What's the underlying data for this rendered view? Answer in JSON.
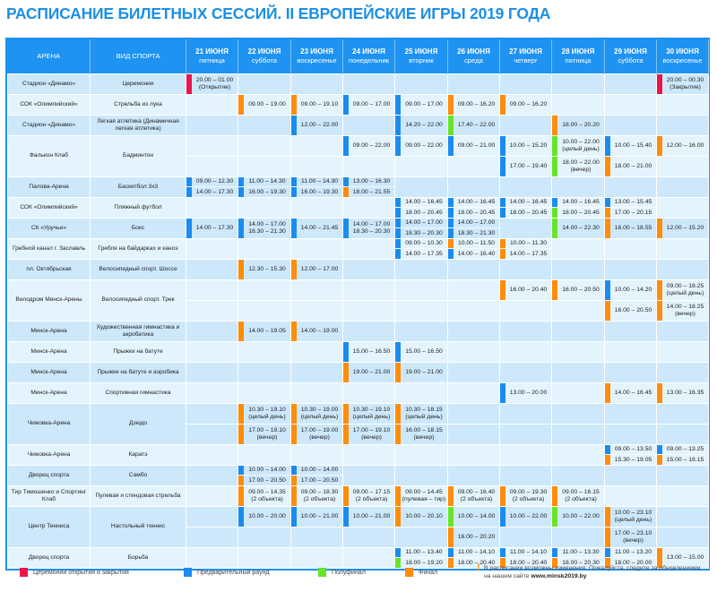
{
  "title": "РАСПИСАНИЕ БИЛЕТНЫХ СЕССИЙ. II ЕВРОПЕЙСКИЕ ИГРЫ 2019 ГОДА",
  "colors": {
    "r": "#e8174a",
    "b": "#1a8cf0",
    "g": "#66e52a",
    "o": "#ff8c0a",
    "header": "#1e93f2",
    "title": "#1c8fe6"
  },
  "header": {
    "arena": "АРЕНА",
    "sport": "ВИД СПОРТА",
    "days": [
      {
        "date": "21 ИЮНЯ",
        "weekday": "пятница"
      },
      {
        "date": "22 ИЮНЯ",
        "weekday": "суббота"
      },
      {
        "date": "23 ИЮНЯ",
        "weekday": "воскресенье"
      },
      {
        "date": "24 ИЮНЯ",
        "weekday": "понедельник"
      },
      {
        "date": "25 ИЮНЯ",
        "weekday": "вторник"
      },
      {
        "date": "26 ИЮНЯ",
        "weekday": "среда"
      },
      {
        "date": "27 ИЮНЯ",
        "weekday": "четверг"
      },
      {
        "date": "28 ИЮНЯ",
        "weekday": "пятница"
      },
      {
        "date": "29 ИЮНЯ",
        "weekday": "суббота"
      },
      {
        "date": "30 ИЮНЯ",
        "weekday": "воскресенье"
      }
    ]
  },
  "rows": [
    {
      "arena": "Стадион «Динамо»",
      "sport": "Церемонии",
      "sub": [
        {
          "0": [
            {
              "c": "r",
              "t": "20.00 – 01.00",
              "n": "(Открытие)"
            }
          ],
          "9": [
            {
              "c": "r",
              "t": "20.00 – 00.30",
              "n": "(Закрытие)"
            }
          ]
        }
      ]
    },
    {
      "arena": "СОК «Олимпийский»",
      "sport": "Стрельба из лука",
      "sub": [
        {
          "1": [
            {
              "c": "o",
              "t": "09.00 – 19.00"
            }
          ],
          "2": [
            {
              "c": "o",
              "t": "09.00 – 19.10"
            }
          ],
          "3": [
            {
              "c": "b",
              "t": "09.00 – 17.00"
            }
          ],
          "4": [
            {
              "c": "b",
              "t": "09.00 – 17.00"
            }
          ],
          "5": [
            {
              "c": "o",
              "t": "09.00 – 16.20"
            }
          ],
          "6": [
            {
              "c": "o",
              "t": "09.00 – 16.20"
            }
          ]
        }
      ]
    },
    {
      "arena": "Стадион «Динамо»",
      "sport": "Легкая атлетика (Динамичная легкая атлетика)",
      "sub": [
        {
          "2": [
            {
              "c": "b",
              "t": "12.00 – 22.00"
            }
          ],
          "4": [
            {
              "c": "b",
              "t": "14.20 – 22.00"
            }
          ],
          "5": [
            {
              "c": "g",
              "t": "17.40 – 22.00"
            }
          ],
          "7": [
            {
              "c": "o",
              "t": "18.00 – 20.20"
            }
          ]
        }
      ]
    },
    {
      "arena": "Фалькон Клаб",
      "sport": "Бадминтон",
      "sub": [
        {
          "3": [
            {
              "c": "b",
              "t": "09.00 – 22.00"
            }
          ],
          "4": [
            {
              "c": "b",
              "t": "09.00 – 22.00"
            }
          ],
          "5": [
            {
              "c": "b",
              "t": "09.00 – 21.00"
            }
          ],
          "6": [
            {
              "c": "b",
              "t": "10.00 – 15.20"
            }
          ],
          "7": [
            {
              "c": "g",
              "t": "10.00 – 22.00",
              "n": "(целый день)"
            }
          ],
          "8": [
            {
              "c": "b",
              "t": "10.00 – 15.40"
            }
          ],
          "9": [
            {
              "c": "o",
              "t": "12.00 – 16.00"
            }
          ]
        },
        {
          "6": [
            {
              "c": "b",
              "t": "17.00 – 19.40"
            }
          ],
          "7": [
            {
              "c": "g",
              "t": "18.00 – 22.00",
              "n": "(вечер)"
            }
          ],
          "8": [
            {
              "c": "o",
              "t": "18.00 – 21.00"
            }
          ]
        }
      ]
    },
    {
      "arena": "Палова-Арена",
      "sport": "Баскетбол 3х3",
      "sub": [
        {
          "0": [
            {
              "c": "b",
              "t": "09.00 – 12.30"
            },
            {
              "c": "b",
              "t": "14.00 – 17.30"
            }
          ],
          "1": [
            {
              "c": "b",
              "t": "11.00 – 14.30"
            },
            {
              "c": "b",
              "t": "16.00 – 19.30"
            }
          ],
          "2": [
            {
              "c": "b",
              "t": "11.00 – 14.30"
            },
            {
              "c": "b",
              "t": "16.00 – 19.30"
            }
          ],
          "3": [
            {
              "c": "b",
              "t": "13.00 – 16.30"
            },
            {
              "c": "o",
              "t": "18.00 – 21.55"
            }
          ]
        }
      ]
    },
    {
      "arena": "СОК «Олимпийский»",
      "sport": "Пляжный футбол",
      "sub": [
        {
          "4": [
            {
              "c": "b",
              "t": "14.00 – 16.45"
            },
            {
              "c": "b",
              "t": "18.00 – 20.45"
            }
          ],
          "5": [
            {
              "c": "b",
              "t": "14.00 – 16.45"
            },
            {
              "c": "b",
              "t": "18.00 – 20.45"
            }
          ],
          "6": [
            {
              "c": "b",
              "t": "14.00 – 16.45"
            },
            {
              "c": "b",
              "t": "18.00 – 20.45"
            }
          ],
          "7": [
            {
              "c": "b",
              "t": "14.00 – 16.45"
            },
            {
              "c": "g",
              "t": "18.00 – 20.45"
            }
          ],
          "8": [
            {
              "c": "b",
              "t": "13.00 – 15.45"
            },
            {
              "c": "o",
              "t": "17.00 – 20.15"
            }
          ]
        }
      ]
    },
    {
      "arena": "СК «Уручье»",
      "sport": "Бокс",
      "sub": [
        {
          "0": [
            {
              "c": "b",
              "t": "14.00 – 17.30"
            }
          ],
          "1": [
            {
              "c": "b",
              "t": "14.00 – 17.00",
              "n": "18.30 – 21.30"
            }
          ],
          "2": [
            {
              "c": "b",
              "t": "14.00 – 21.45"
            }
          ],
          "3": [
            {
              "c": "b",
              "t": "14.00 – 17.00",
              "n": "18.30 – 20.30"
            }
          ],
          "4": [
            {
              "c": "b",
              "t": "14.00 – 17.00"
            },
            {
              "c": "b",
              "t": "18.30 – 20.30"
            }
          ],
          "5": [
            {
              "c": "b",
              "t": "14.00 – 17.00"
            },
            {
              "c": "b",
              "t": "18.30 – 21.30"
            }
          ],
          "7": [
            {
              "c": "g",
              "t": "14.00 – 22.30"
            }
          ],
          "8": [
            {
              "c": "o",
              "t": "16.00 – 18.55"
            }
          ],
          "9": [
            {
              "c": "o",
              "t": "12.00 – 15.20"
            }
          ]
        }
      ]
    },
    {
      "arena": "Гребной канал г. Заславль",
      "sport": "Гребля на байдарках и каноэ",
      "sub": [
        {
          "4": [
            {
              "c": "b",
              "t": "09.00 – 10.30"
            },
            {
              "c": "b",
              "t": "14.00 – 17.35"
            }
          ],
          "5": [
            {
              "c": "o",
              "t": "10.00 – 11.50"
            },
            {
              "c": "b",
              "t": "14.00 – 16.40"
            }
          ],
          "6": [
            {
              "c": "o",
              "t": "10.00 – 11.30"
            },
            {
              "c": "o",
              "t": "14.00 – 17.35"
            }
          ]
        }
      ]
    },
    {
      "arena": "пл. Октябрьская",
      "sport": "Велосипедный спорт. Шоссе",
      "sub": [
        {
          "1": [
            {
              "c": "o",
              "t": "12.30 – 15.30"
            }
          ],
          "2": [
            {
              "c": "o",
              "t": "12.00 – 17.00"
            }
          ]
        }
      ]
    },
    {
      "arena": "Велодром Минск-Арены",
      "sport": "Велосипедный спорт. Трек",
      "sub": [
        {
          "6": [
            {
              "c": "o",
              "t": "16.00 – 20.40"
            }
          ],
          "7": [
            {
              "c": "o",
              "t": "16.00 – 20.50"
            }
          ],
          "8": [
            {
              "c": "b",
              "t": "10.00 – 14.20"
            }
          ],
          "9": [
            {
              "c": "o",
              "t": "09.00 – 18.25",
              "n": "(целый день)"
            }
          ]
        },
        {
          "8": [
            {
              "c": "o",
              "t": "16.00 – 20.50"
            }
          ],
          "9": [
            {
              "c": "o",
              "t": "14.00 – 18.25",
              "n": "(вечер)"
            }
          ]
        }
      ]
    },
    {
      "arena": "Минск-Арена",
      "sport": "Художественная гимнастика и акробатика",
      "sub": [
        {
          "1": [
            {
              "c": "o",
              "t": "14.00 – 19.05"
            }
          ],
          "2": [
            {
              "c": "o",
              "t": "14.00 – 19.00"
            }
          ]
        }
      ]
    },
    {
      "arena": "Минск-Арена",
      "sport": "Прыжки на батуте",
      "sub": [
        {
          "3": [
            {
              "c": "b",
              "t": "15.00 – 16.50"
            }
          ],
          "4": [
            {
              "c": "b",
              "t": "15.00 – 16.50"
            }
          ]
        }
      ]
    },
    {
      "arena": "Минск-Арена",
      "sport": "Прыжки на батуте и аэробика",
      "sub": [
        {
          "3": [
            {
              "c": "o",
              "t": "19.00 – 21.00"
            }
          ],
          "4": [
            {
              "c": "o",
              "t": "19.00 – 21.00"
            }
          ]
        }
      ]
    },
    {
      "arena": "Минск-Арена",
      "sport": "Спортивная гимнастика",
      "sub": [
        {
          "6": [
            {
              "c": "b",
              "t": "13.00 – 20.00"
            }
          ],
          "8": [
            {
              "c": "o",
              "t": "14.00 – 16.45"
            }
          ],
          "9": [
            {
              "c": "o",
              "t": "13.00 – 16.35"
            }
          ]
        }
      ]
    },
    {
      "arena": "Чижовка-Арена",
      "sport": "Дзюдо",
      "sub": [
        {
          "1": [
            {
              "c": "o",
              "t": "10.30 – 19.10",
              "n": "(целый день)"
            }
          ],
          "2": [
            {
              "c": "o",
              "t": "10.30 – 19.00",
              "n": "(целый день)"
            }
          ],
          "3": [
            {
              "c": "o",
              "t": "10.30 – 19.10",
              "n": "(целый день)"
            }
          ],
          "4": [
            {
              "c": "o",
              "t": "10.30 – 18.15",
              "n": "(целый день)"
            }
          ]
        },
        {
          "1": [
            {
              "c": "o",
              "t": "17.00 – 19.10",
              "n": "(вечер)"
            }
          ],
          "2": [
            {
              "c": "o",
              "t": "17.00 – 19.00",
              "n": "(вечер)"
            }
          ],
          "3": [
            {
              "c": "o",
              "t": "17.00 – 19.10",
              "n": "(вечер)"
            }
          ],
          "4": [
            {
              "c": "o",
              "t": "16.00 – 18.15",
              "n": "(вечер)"
            }
          ]
        }
      ]
    },
    {
      "arena": "Чижовка-Арена",
      "sport": "Каратэ",
      "sub": [
        {
          "8": [
            {
              "c": "b",
              "t": "09.00 – 13.50"
            },
            {
              "c": "o",
              "t": "15.30 – 19.05"
            }
          ],
          "9": [
            {
              "c": "b",
              "t": "09.00 – 13.25"
            },
            {
              "c": "o",
              "t": "15.00 – 18.15"
            }
          ]
        }
      ]
    },
    {
      "arena": "Дворец спорта",
      "sport": "Самбо",
      "sub": [
        {
          "1": [
            {
              "c": "b",
              "t": "10.00 – 14.00"
            },
            {
              "c": "o",
              "t": "17.00 – 20.50"
            }
          ],
          "2": [
            {
              "c": "b",
              "t": "10.00 – 14.00"
            },
            {
              "c": "o",
              "t": "17.00 – 20.50"
            }
          ]
        }
      ]
    },
    {
      "arena": "Тир Тимошенко и Спортинг Клаб",
      "sport": "Пулевая и стендовая стрельба",
      "sub": [
        {
          "1": [
            {
              "c": "o",
              "t": "09.00 – 14.35",
              "n": "(2 объекта)"
            }
          ],
          "2": [
            {
              "c": "o",
              "t": "09.00 – 18.30",
              "n": "(2 объекта)"
            }
          ],
          "3": [
            {
              "c": "o",
              "t": "09.00 – 17.15",
              "n": "(2 объекта)"
            }
          ],
          "4": [
            {
              "c": "o",
              "t": "09.00 – 14.45",
              "n": "(пулевая – тир)"
            }
          ],
          "5": [
            {
              "c": "o",
              "t": "09.00 – 16.40",
              "n": "(2 объекта)"
            }
          ],
          "6": [
            {
              "c": "o",
              "t": "09.00 – 19.30",
              "n": "(2 объекта)"
            }
          ],
          "7": [
            {
              "c": "o",
              "t": "09.00 – 16.15",
              "n": "(2 объекта)"
            }
          ]
        }
      ]
    },
    {
      "arena": "Центр Тенниса",
      "sport": "Настольный теннис",
      "sub": [
        {
          "1": [
            {
              "c": "b",
              "t": "10.00 – 20.00"
            }
          ],
          "2": [
            {
              "c": "b",
              "t": "10.00 – 21.00"
            }
          ],
          "3": [
            {
              "c": "b",
              "t": "10.00 – 21.00"
            }
          ],
          "4": [
            {
              "c": "o",
              "t": "10.00 – 20.10"
            }
          ],
          "5": [
            {
              "c": "g",
              "t": "10.00 – 14.00"
            }
          ],
          "6": [
            {
              "c": "b",
              "t": "10.00 – 22.00"
            }
          ],
          "7": [
            {
              "c": "g",
              "t": "10.00 – 22.00"
            }
          ],
          "8": [
            {
              "c": "o",
              "t": "10.00 – 23.10",
              "n": "(целый день)"
            }
          ]
        },
        {
          "5": [
            {
              "c": "o",
              "t": "16.00 – 20.20"
            }
          ],
          "8": [
            {
              "c": "o",
              "t": "17.00 – 23.10",
              "n": "(вечер)"
            }
          ]
        }
      ]
    },
    {
      "arena": "Дворец спорта",
      "sport": "Борьба",
      "sub": [
        {
          "4": [
            {
              "c": "b",
              "t": "11.00 – 13.40"
            },
            {
              "c": "g",
              "t": "18.00 – 19.20"
            }
          ],
          "5": [
            {
              "c": "b",
              "t": "11.00 – 14.10"
            },
            {
              "c": "o",
              "t": "18.00 – 20.40"
            }
          ],
          "6": [
            {
              "c": "b",
              "t": "11.00 – 14.10"
            },
            {
              "c": "o",
              "t": "18.00 – 20.40"
            }
          ],
          "7": [
            {
              "c": "b",
              "t": "11.00 – 13.30"
            },
            {
              "c": "o",
              "t": "18.00 – 20.30"
            }
          ],
          "8": [
            {
              "c": "b",
              "t": "11.00 – 13.20"
            },
            {
              "c": "o",
              "t": "18.00 – 20.00"
            }
          ],
          "9": [
            {
              "c": "o",
              "t": "13.00 – 15.00"
            }
          ]
        }
      ]
    }
  ],
  "legend": {
    "ceremony": "Церемонии открытия и закрытия",
    "prelim": "Предварительный раунд",
    "semifinal": "Полуфинал",
    "final": "Финал",
    "note": "В расписании возможны изменения. Пожалуйста, следите за обновлениями на нашем сайте",
    "site": "www.minsk2019.by"
  }
}
